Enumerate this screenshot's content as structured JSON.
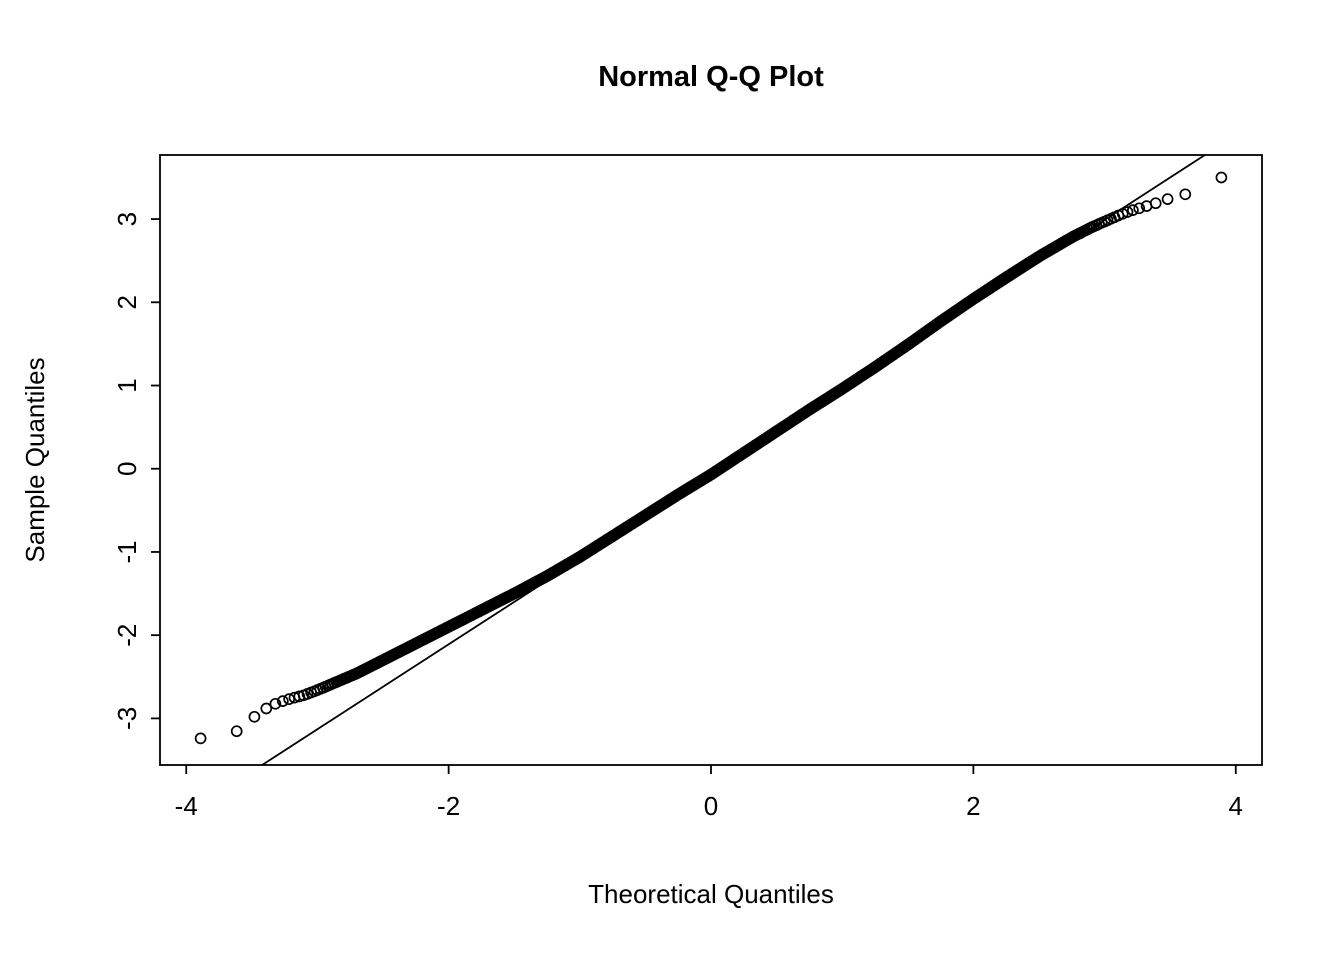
{
  "chart_data": {
    "type": "scatter",
    "subtype": "normal-qq-plot",
    "title": "Normal Q-Q Plot",
    "xlabel": "Theoretical Quantiles",
    "ylabel": "Sample Quantiles",
    "xlim": [
      -4.2,
      4.2
    ],
    "ylim": [
      -3.56,
      3.77
    ],
    "x_ticks": [
      -4,
      -2,
      0,
      2,
      4
    ],
    "y_ticks": [
      -3,
      -2,
      -1,
      0,
      1,
      2,
      3
    ],
    "grid": false,
    "legend": null,
    "marker": "open-circle",
    "color": "#000000",
    "background": "#ffffff",
    "n_points": 10000,
    "reference_line": {
      "slope": 1.02,
      "intercept": -0.07,
      "color": "#000000"
    },
    "qq_curve_anchors": [
      [
        -3.89,
        -3.24
      ],
      [
        -3.62,
        -3.16
      ],
      [
        -3.48,
        -2.98
      ],
      [
        -3.38,
        -2.87
      ],
      [
        -3.3,
        -2.81
      ],
      [
        -3.2,
        -2.76
      ],
      [
        -3.1,
        -2.72
      ],
      [
        -3.0,
        -2.66
      ],
      [
        -2.85,
        -2.56
      ],
      [
        -2.7,
        -2.46
      ],
      [
        -2.55,
        -2.34
      ],
      [
        -2.4,
        -2.22
      ],
      [
        -2.25,
        -2.1
      ],
      [
        -2.1,
        -1.98
      ],
      [
        -1.95,
        -1.86
      ],
      [
        -1.8,
        -1.74
      ],
      [
        -1.65,
        -1.62
      ],
      [
        -1.5,
        -1.5
      ],
      [
        -1.25,
        -1.29
      ],
      [
        -1.0,
        -1.06
      ],
      [
        -0.75,
        -0.81
      ],
      [
        -0.5,
        -0.56
      ],
      [
        -0.25,
        -0.31
      ],
      [
        0.0,
        -0.07
      ],
      [
        0.25,
        0.19
      ],
      [
        0.5,
        0.45
      ],
      [
        0.75,
        0.71
      ],
      [
        1.0,
        0.96
      ],
      [
        1.25,
        1.22
      ],
      [
        1.5,
        1.49
      ],
      [
        1.75,
        1.77
      ],
      [
        2.0,
        2.04
      ],
      [
        2.25,
        2.3
      ],
      [
        2.5,
        2.55
      ],
      [
        2.75,
        2.78
      ],
      [
        2.9,
        2.9
      ],
      [
        3.0,
        2.97
      ],
      [
        3.1,
        3.04
      ],
      [
        3.2,
        3.1
      ],
      [
        3.35,
        3.17
      ],
      [
        3.5,
        3.25
      ],
      [
        3.62,
        3.3
      ],
      [
        3.75,
        3.37
      ],
      [
        3.89,
        3.5
      ]
    ]
  }
}
